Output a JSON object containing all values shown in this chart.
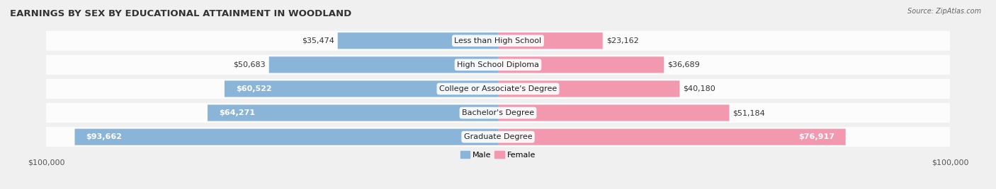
{
  "title": "EARNINGS BY SEX BY EDUCATIONAL ATTAINMENT IN WOODLAND",
  "source": "Source: ZipAtlas.com",
  "categories": [
    "Less than High School",
    "High School Diploma",
    "College or Associate's Degree",
    "Bachelor's Degree",
    "Graduate Degree"
  ],
  "male_values": [
    35474,
    50683,
    60522,
    64271,
    93662
  ],
  "female_values": [
    23162,
    36689,
    40180,
    51184,
    76917
  ],
  "male_color": "#8ab4d8",
  "female_color": "#f299b0",
  "male_label": "Male",
  "female_label": "Female",
  "max_value": 100000,
  "background_color": "#f0f0f0",
  "row_bg_color": "#e0e0e0",
  "title_fontsize": 9.5,
  "label_fontsize": 8.0,
  "value_fontsize": 8.0,
  "tick_fontsize": 8.0
}
